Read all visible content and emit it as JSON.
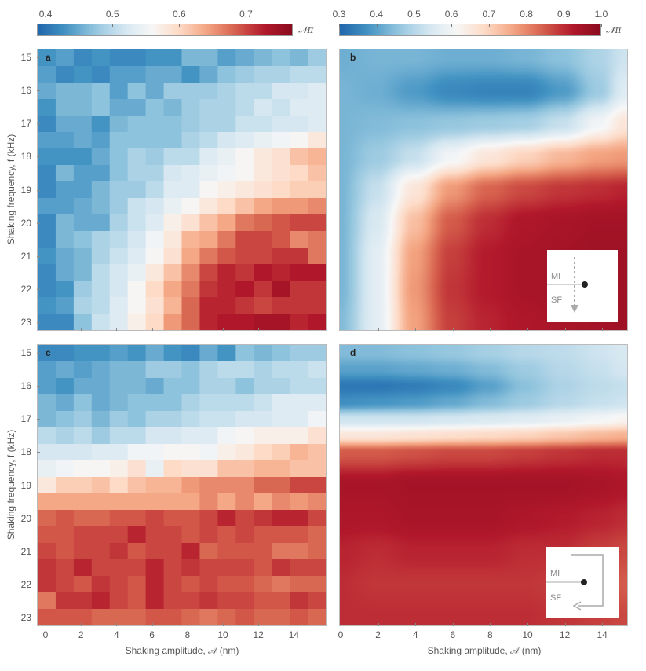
{
  "colors": {
    "cmap": [
      "#2166ac",
      "#4393c3",
      "#92c5de",
      "#d1e5f0",
      "#f7f7f7",
      "#fddbc7",
      "#f4a582",
      "#d6604d",
      "#b2182b",
      "#8a0b1f"
    ]
  },
  "colorbars": [
    {
      "ticks": [
        "0.4",
        "0.5",
        "0.6",
        "0.7"
      ],
      "tick_values": [
        0.4,
        0.5,
        0.6,
        0.7
      ],
      "range": [
        0.387,
        0.77
      ],
      "symbol": "𝒩π"
    },
    {
      "ticks": [
        "0.3",
        "0.4",
        "0.5",
        "0.6",
        "0.7",
        "0.8",
        "0.9",
        "1.0"
      ],
      "tick_values": [
        0.3,
        0.4,
        0.5,
        0.6,
        0.7,
        0.8,
        0.9,
        1.0
      ],
      "range": [
        0.3,
        1.0
      ],
      "symbol": "𝒩π"
    }
  ],
  "axes": {
    "ylabel": "Shaking frequency, f (kHz)",
    "xlabel": "Shaking amplitude, 𝒜 (nm)",
    "yticks": [
      "15",
      "16",
      "17",
      "18",
      "19",
      "20",
      "21",
      "22",
      "23"
    ],
    "xticks": [
      "0",
      "2",
      "4",
      "6",
      "8",
      "10",
      "12",
      "14"
    ]
  },
  "insets": {
    "upper": "MI",
    "lower": "SF"
  },
  "chart_data": [
    {
      "panel": "a",
      "type": "heatmap",
      "title": "a",
      "xlabel": "Shaking amplitude, 𝒜 (nm)",
      "ylabel": "Shaking frequency, f (kHz)",
      "x": [
        0,
        1,
        2,
        3,
        4,
        5,
        6,
        7,
        8,
        9,
        10,
        11,
        12,
        13,
        14,
        15
      ],
      "y": [
        15,
        15.5,
        16,
        16.5,
        17,
        17.5,
        18,
        18.5,
        19,
        19.5,
        20,
        20.5,
        21,
        21.5,
        22,
        22.5,
        23
      ],
      "zlim": [
        0.4,
        0.75
      ],
      "z": [
        [
          0.43,
          0.44,
          0.42,
          0.43,
          0.42,
          0.42,
          0.43,
          0.43,
          0.46,
          0.46,
          0.44,
          0.45,
          0.46,
          0.47,
          0.46,
          0.48
        ],
        [
          0.44,
          0.42,
          0.43,
          0.42,
          0.44,
          0.44,
          0.45,
          0.45,
          0.43,
          0.45,
          0.47,
          0.48,
          0.49,
          0.49,
          0.5,
          0.5
        ],
        [
          0.45,
          0.46,
          0.46,
          0.47,
          0.44,
          0.47,
          0.45,
          0.48,
          0.48,
          0.48,
          0.49,
          0.5,
          0.5,
          0.52,
          0.52,
          0.53
        ],
        [
          0.43,
          0.46,
          0.46,
          0.47,
          0.45,
          0.45,
          0.47,
          0.46,
          0.48,
          0.49,
          0.49,
          0.5,
          0.52,
          0.51,
          0.53,
          0.53
        ],
        [
          0.42,
          0.45,
          0.45,
          0.43,
          0.46,
          0.47,
          0.47,
          0.47,
          0.48,
          0.49,
          0.49,
          0.51,
          0.51,
          0.52,
          0.52,
          0.53
        ],
        [
          0.44,
          0.44,
          0.45,
          0.44,
          0.47,
          0.47,
          0.47,
          0.47,
          0.49,
          0.5,
          0.52,
          0.53,
          0.54,
          0.55,
          0.56,
          0.58
        ],
        [
          0.43,
          0.43,
          0.43,
          0.45,
          0.47,
          0.49,
          0.48,
          0.5,
          0.5,
          0.53,
          0.54,
          0.56,
          0.58,
          0.59,
          0.62,
          0.63
        ],
        [
          0.42,
          0.46,
          0.44,
          0.44,
          0.47,
          0.49,
          0.49,
          0.52,
          0.53,
          0.54,
          0.55,
          0.56,
          0.58,
          0.59,
          0.6,
          0.62
        ],
        [
          0.42,
          0.44,
          0.44,
          0.46,
          0.48,
          0.48,
          0.5,
          0.53,
          0.53,
          0.56,
          0.57,
          0.58,
          0.59,
          0.6,
          0.61,
          0.61
        ],
        [
          0.44,
          0.44,
          0.45,
          0.46,
          0.48,
          0.51,
          0.52,
          0.54,
          0.56,
          0.58,
          0.6,
          0.62,
          0.64,
          0.65,
          0.65,
          0.66
        ],
        [
          0.42,
          0.46,
          0.45,
          0.45,
          0.49,
          0.51,
          0.53,
          0.57,
          0.59,
          0.62,
          0.64,
          0.67,
          0.68,
          0.69,
          0.7,
          0.7
        ],
        [
          0.42,
          0.46,
          0.47,
          0.49,
          0.5,
          0.52,
          0.55,
          0.58,
          0.63,
          0.64,
          0.67,
          0.7,
          0.7,
          0.69,
          0.66,
          0.67
        ],
        [
          0.43,
          0.45,
          0.46,
          0.49,
          0.51,
          0.53,
          0.56,
          0.59,
          0.64,
          0.67,
          0.69,
          0.7,
          0.7,
          0.71,
          0.71,
          0.67
        ],
        [
          0.42,
          0.45,
          0.46,
          0.5,
          0.52,
          0.54,
          0.58,
          0.62,
          0.66,
          0.7,
          0.72,
          0.71,
          0.73,
          0.72,
          0.73,
          0.73
        ],
        [
          0.42,
          0.43,
          0.48,
          0.5,
          0.52,
          0.56,
          0.6,
          0.64,
          0.67,
          0.71,
          0.72,
          0.73,
          0.71,
          0.74,
          0.71,
          0.71
        ],
        [
          0.43,
          0.44,
          0.49,
          0.5,
          0.53,
          0.56,
          0.59,
          0.63,
          0.68,
          0.72,
          0.72,
          0.71,
          0.7,
          0.71,
          0.71,
          0.71
        ],
        [
          0.42,
          0.42,
          0.47,
          0.51,
          0.53,
          0.57,
          0.6,
          0.65,
          0.68,
          0.72,
          0.73,
          0.73,
          0.74,
          0.74,
          0.72,
          0.73
        ]
      ]
    },
    {
      "panel": "b",
      "type": "heatmap",
      "title": "b",
      "xlabel": "Shaking amplitude, 𝒜 (nm)",
      "ylabel": "Shaking frequency, f (kHz)",
      "x": [
        0,
        2,
        4,
        6,
        8,
        10,
        12,
        14,
        15.4
      ],
      "y": [
        15,
        16,
        17,
        18,
        19,
        20,
        21,
        22,
        23
      ],
      "zlim": [
        0.3,
        1.0
      ],
      "z": [
        [
          0.42,
          0.43,
          0.43,
          0.42,
          0.42,
          0.43,
          0.45,
          0.49,
          0.53
        ],
        [
          0.43,
          0.42,
          0.39,
          0.36,
          0.35,
          0.35,
          0.39,
          0.47,
          0.56
        ],
        [
          0.43,
          0.44,
          0.45,
          0.46,
          0.47,
          0.48,
          0.52,
          0.6,
          0.66
        ],
        [
          0.43,
          0.47,
          0.52,
          0.6,
          0.66,
          0.7,
          0.74,
          0.77,
          0.78
        ],
        [
          0.43,
          0.52,
          0.66,
          0.78,
          0.84,
          0.87,
          0.89,
          0.9,
          0.91
        ],
        [
          0.43,
          0.55,
          0.73,
          0.85,
          0.9,
          0.93,
          0.94,
          0.95,
          0.95
        ],
        [
          0.43,
          0.57,
          0.77,
          0.88,
          0.92,
          0.94,
          0.95,
          0.96,
          0.96
        ],
        [
          0.43,
          0.57,
          0.78,
          0.89,
          0.92,
          0.94,
          0.95,
          0.95,
          0.96
        ],
        [
          0.44,
          0.57,
          0.77,
          0.88,
          0.91,
          0.93,
          0.94,
          0.95,
          0.96
        ]
      ]
    },
    {
      "panel": "c",
      "type": "heatmap",
      "title": "c",
      "xlabel": "Shaking amplitude, 𝒜 (nm)",
      "ylabel": "Shaking frequency, f (kHz)",
      "x": [
        0,
        1,
        2,
        3,
        4,
        5,
        6,
        7,
        8,
        9,
        10,
        11,
        12,
        13,
        14,
        15
      ],
      "y": [
        15,
        15.5,
        16,
        16.5,
        17,
        17.5,
        18,
        18.5,
        19,
        19.5,
        20,
        20.5,
        21,
        21.5,
        22,
        22.5,
        23
      ],
      "zlim": [
        0.4,
        0.75
      ],
      "z": [
        [
          0.42,
          0.42,
          0.43,
          0.43,
          0.44,
          0.43,
          0.45,
          0.43,
          0.42,
          0.45,
          0.43,
          0.47,
          0.46,
          0.47,
          0.48,
          0.48
        ],
        [
          0.44,
          0.45,
          0.44,
          0.45,
          0.46,
          0.46,
          0.48,
          0.48,
          0.47,
          0.49,
          0.5,
          0.5,
          0.49,
          0.5,
          0.5,
          0.51
        ],
        [
          0.44,
          0.43,
          0.45,
          0.45,
          0.46,
          0.46,
          0.45,
          0.47,
          0.47,
          0.49,
          0.49,
          0.47,
          0.49,
          0.49,
          0.5,
          0.5
        ],
        [
          0.46,
          0.45,
          0.47,
          0.45,
          0.46,
          0.47,
          0.47,
          0.47,
          0.49,
          0.5,
          0.5,
          0.5,
          0.51,
          0.53,
          0.53,
          0.53
        ],
        [
          0.46,
          0.47,
          0.48,
          0.46,
          0.48,
          0.47,
          0.49,
          0.49,
          0.5,
          0.51,
          0.51,
          0.52,
          0.52,
          0.53,
          0.53,
          0.55
        ],
        [
          0.5,
          0.49,
          0.5,
          0.48,
          0.5,
          0.5,
          0.52,
          0.52,
          0.53,
          0.53,
          0.55,
          0.56,
          0.57,
          0.57,
          0.57,
          0.59
        ],
        [
          0.52,
          0.52,
          0.52,
          0.53,
          0.53,
          0.55,
          0.55,
          0.56,
          0.56,
          0.55,
          0.57,
          0.58,
          0.6,
          0.61,
          0.63,
          0.62
        ],
        [
          0.54,
          0.55,
          0.56,
          0.56,
          0.57,
          0.59,
          0.54,
          0.6,
          0.59,
          0.59,
          0.62,
          0.62,
          0.63,
          0.63,
          0.62,
          0.62
        ],
        [
          0.58,
          0.61,
          0.61,
          0.62,
          0.6,
          0.62,
          0.63,
          0.63,
          0.65,
          0.66,
          0.66,
          0.66,
          0.68,
          0.68,
          0.7,
          0.7
        ],
        [
          0.64,
          0.64,
          0.64,
          0.64,
          0.64,
          0.64,
          0.64,
          0.64,
          0.64,
          0.66,
          0.64,
          0.66,
          0.64,
          0.66,
          0.65,
          0.66
        ],
        [
          0.68,
          0.69,
          0.68,
          0.68,
          0.69,
          0.69,
          0.7,
          0.69,
          0.69,
          0.7,
          0.72,
          0.7,
          0.71,
          0.72,
          0.72,
          0.7
        ],
        [
          0.69,
          0.69,
          0.7,
          0.7,
          0.7,
          0.72,
          0.7,
          0.7,
          0.69,
          0.7,
          0.69,
          0.7,
          0.69,
          0.69,
          0.69,
          0.68
        ],
        [
          0.7,
          0.69,
          0.7,
          0.7,
          0.71,
          0.69,
          0.7,
          0.7,
          0.72,
          0.68,
          0.69,
          0.69,
          0.69,
          0.67,
          0.67,
          0.68
        ],
        [
          0.71,
          0.7,
          0.72,
          0.7,
          0.7,
          0.7,
          0.72,
          0.7,
          0.71,
          0.7,
          0.7,
          0.7,
          0.69,
          0.71,
          0.7,
          0.7
        ],
        [
          0.71,
          0.7,
          0.69,
          0.71,
          0.7,
          0.69,
          0.72,
          0.7,
          0.69,
          0.7,
          0.69,
          0.69,
          0.68,
          0.67,
          0.68,
          0.68
        ],
        [
          0.67,
          0.71,
          0.71,
          0.72,
          0.7,
          0.69,
          0.72,
          0.7,
          0.7,
          0.71,
          0.7,
          0.7,
          0.69,
          0.69,
          0.71,
          0.7
        ],
        [
          0.69,
          0.69,
          0.69,
          0.68,
          0.68,
          0.68,
          0.69,
          0.69,
          0.68,
          0.67,
          0.68,
          0.69,
          0.68,
          0.68,
          0.69,
          0.68
        ]
      ]
    },
    {
      "panel": "d",
      "type": "heatmap",
      "title": "d",
      "xlabel": "Shaking amplitude, 𝒜 (nm)",
      "ylabel": "Shaking frequency, f (kHz)",
      "x": [
        0,
        2,
        4,
        6,
        8,
        10,
        12,
        14,
        15.4
      ],
      "y": [
        15,
        15.5,
        16,
        16.5,
        17,
        17.5,
        18,
        19,
        20,
        21,
        22,
        23
      ],
      "zlim": [
        0.3,
        1.0
      ],
      "z": [
        [
          0.44,
          0.44,
          0.45,
          0.46,
          0.48,
          0.5,
          0.51,
          0.53,
          0.55
        ],
        [
          0.4,
          0.4,
          0.41,
          0.42,
          0.44,
          0.47,
          0.5,
          0.52,
          0.54
        ],
        [
          0.33,
          0.33,
          0.34,
          0.36,
          0.4,
          0.45,
          0.49,
          0.51,
          0.52
        ],
        [
          0.37,
          0.38,
          0.39,
          0.41,
          0.44,
          0.47,
          0.5,
          0.52,
          0.53
        ],
        [
          0.53,
          0.53,
          0.53,
          0.54,
          0.55,
          0.56,
          0.58,
          0.6,
          0.62
        ],
        [
          0.66,
          0.66,
          0.67,
          0.68,
          0.69,
          0.7,
          0.72,
          0.74,
          0.75
        ],
        [
          0.85,
          0.85,
          0.86,
          0.87,
          0.87,
          0.88,
          0.89,
          0.9,
          0.9
        ],
        [
          0.94,
          0.94,
          0.95,
          0.95,
          0.95,
          0.95,
          0.95,
          0.94,
          0.93
        ],
        [
          0.93,
          0.93,
          0.94,
          0.94,
          0.94,
          0.93,
          0.92,
          0.91,
          0.9
        ],
        [
          0.91,
          0.9,
          0.91,
          0.91,
          0.91,
          0.9,
          0.9,
          0.88,
          0.87
        ],
        [
          0.9,
          0.89,
          0.89,
          0.89,
          0.89,
          0.89,
          0.88,
          0.86,
          0.85
        ],
        [
          0.9,
          0.9,
          0.9,
          0.9,
          0.9,
          0.9,
          0.89,
          0.88,
          0.87
        ]
      ]
    }
  ]
}
